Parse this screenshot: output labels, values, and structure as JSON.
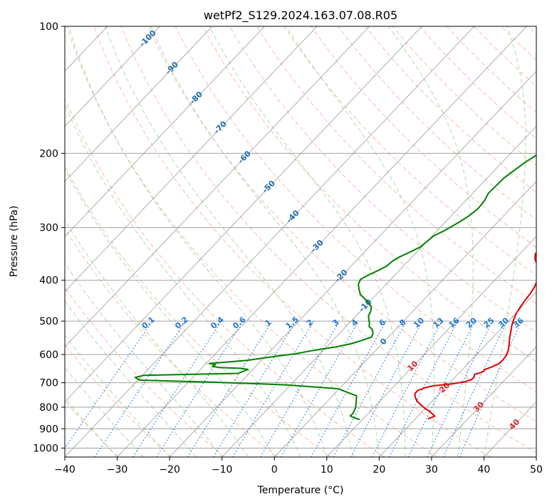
{
  "chart_data": {
    "type": "line",
    "subtype": "skew-t log-p diagram",
    "title": "wetPf2_S129.2024.163.07.08.R05",
    "xlabel": "Temperature (°C)",
    "ylabel": "Pressure (hPa)",
    "xlim": [
      -40,
      50
    ],
    "ylim": [
      1050,
      100
    ],
    "y_scale": "log",
    "x_ticks": [
      "−40",
      "−30",
      "−20",
      "−10",
      "0",
      "10",
      "20",
      "30",
      "40",
      "50"
    ],
    "y_ticks": [
      {
        "p": 100,
        "label": "100"
      },
      {
        "p": 200,
        "label": "200"
      },
      {
        "p": 300,
        "label": "300"
      },
      {
        "p": 400,
        "label": "400"
      },
      {
        "p": 500,
        "label": "500"
      },
      {
        "p": 600,
        "label": "600"
      },
      {
        "p": 700,
        "label": "700"
      },
      {
        "p": 800,
        "label": "800"
      },
      {
        "p": 900,
        "label": "900"
      },
      {
        "p": 1000,
        "label": "1000"
      }
    ],
    "grid": true,
    "colors": {
      "temperature": "#e00000",
      "dewpoint": "#008000",
      "isotherm": "#8c8c8c",
      "dry_adiabat": "#f7a48b",
      "moist_adiabat": "#8bc98b",
      "mixing_ratio": "#1f77d4",
      "dry_label": "#d62728",
      "isotherm_label": "#1f6fb0"
    },
    "series": [
      {
        "key": "temperature",
        "points": [
          [
            22.4,
            853
          ],
          [
            23.2,
            840
          ],
          [
            22.6,
            833
          ],
          [
            21.5,
            820
          ],
          [
            20.0,
            806
          ],
          [
            18.5,
            790
          ],
          [
            17.0,
            772
          ],
          [
            16.0,
            757
          ],
          [
            15.3,
            742
          ],
          [
            15.3,
            730
          ],
          [
            16.2,
            719
          ],
          [
            17.6,
            711
          ],
          [
            20.1,
            706
          ],
          [
            22.8,
            696
          ],
          [
            23.6,
            688
          ],
          [
            23.6,
            678
          ],
          [
            23.2,
            669
          ],
          [
            24.0,
            663
          ],
          [
            24.4,
            657
          ],
          [
            24.3,
            651
          ],
          [
            25.1,
            643
          ],
          [
            25.9,
            631
          ],
          [
            26.0,
            617
          ],
          [
            25.8,
            602
          ],
          [
            25.3,
            587
          ],
          [
            24.6,
            572
          ],
          [
            23.8,
            557
          ],
          [
            23.0,
            542
          ],
          [
            22.2,
            526
          ],
          [
            21.4,
            511
          ],
          [
            20.7,
            495
          ],
          [
            20.1,
            479
          ],
          [
            19.7,
            462
          ],
          [
            19.4,
            446
          ],
          [
            19.2,
            430
          ],
          [
            18.8,
            415
          ],
          [
            18.2,
            402
          ],
          [
            17.3,
            389
          ],
          [
            16.3,
            377
          ],
          [
            15.1,
            366
          ],
          [
            13.8,
            356
          ],
          [
            13.0,
            347
          ],
          [
            12.8,
            338
          ],
          [
            12.6,
            330
          ],
          [
            12.0,
            321
          ],
          [
            11.0,
            311
          ],
          [
            9.8,
            299
          ],
          [
            8.5,
            286
          ],
          [
            7.0,
            272
          ],
          [
            5.7,
            258
          ],
          [
            4.6,
            243
          ],
          [
            3.6,
            228
          ],
          [
            2.6,
            214
          ],
          [
            1.5,
            200
          ],
          [
            0.6,
            188
          ],
          [
            0.2,
            178
          ],
          [
            0.5,
            168
          ],
          [
            1.6,
            158
          ],
          [
            2.9,
            147
          ],
          [
            4.2,
            138
          ],
          [
            5.4,
            129
          ],
          [
            6.3,
            121
          ],
          [
            7.0,
            114
          ],
          [
            7.6,
            108
          ],
          [
            7.9,
            103
          ],
          [
            7.7,
            100
          ]
        ]
      },
      {
        "key": "dewpoint",
        "points": [
          [
            9.5,
            856
          ],
          [
            8.7,
            851
          ],
          [
            7.6,
            844
          ],
          [
            7.0,
            838
          ],
          [
            7.1,
            828
          ],
          [
            6.5,
            800
          ],
          [
            4.6,
            752
          ],
          [
            -0.3,
            723
          ],
          [
            -11.0,
            708
          ],
          [
            -26.4,
            697
          ],
          [
            -39.7,
            690
          ],
          [
            -41.0,
            680
          ],
          [
            -39.7,
            672
          ],
          [
            -22.1,
            665
          ],
          [
            -20.9,
            651
          ],
          [
            -22.5,
            647
          ],
          [
            -26.9,
            644
          ],
          [
            -28.3,
            640
          ],
          [
            -28.0,
            634
          ],
          [
            -29.4,
            630
          ],
          [
            -22.9,
            620
          ],
          [
            -19.9,
            611
          ],
          [
            -14.5,
            597
          ],
          [
            -12.6,
            589
          ],
          [
            -10.7,
            583
          ],
          [
            -8.1,
            575
          ],
          [
            -6.0,
            566
          ],
          [
            -4.5,
            556
          ],
          [
            -3.2,
            545
          ],
          [
            -3.7,
            533
          ],
          [
            -4.5,
            523
          ],
          [
            -5.6,
            515
          ],
          [
            -6.1,
            506
          ],
          [
            -6.9,
            496
          ],
          [
            -7.7,
            485
          ],
          [
            -8.0,
            475
          ],
          [
            -8.7,
            463
          ],
          [
            -10.2,
            451
          ],
          [
            -11.7,
            441
          ],
          [
            -13.1,
            432
          ],
          [
            -14.2,
            421
          ],
          [
            -15.3,
            409
          ],
          [
            -15.8,
            398
          ],
          [
            -15.0,
            388
          ],
          [
            -14.0,
            379
          ],
          [
            -13.2,
            370
          ],
          [
            -13.0,
            360
          ],
          [
            -12.4,
            352
          ],
          [
            -11.3,
            343
          ],
          [
            -10.3,
            334
          ],
          [
            -10.0,
            324
          ],
          [
            -9.7,
            314
          ],
          [
            -8.6,
            305
          ],
          [
            -7.6,
            294
          ],
          [
            -6.7,
            283
          ],
          [
            -6.2,
            271
          ],
          [
            -6.4,
            259
          ],
          [
            -7.0,
            249
          ],
          [
            -6.9,
            239
          ],
          [
            -6.8,
            229
          ],
          [
            -6.2,
            219
          ],
          [
            -5.5,
            209
          ],
          [
            -4.3,
            198
          ],
          [
            -2.7,
            189
          ],
          [
            -1.0,
            180
          ],
          [
            0.2,
            171
          ],
          [
            0.1,
            162
          ],
          [
            -1.9,
            153
          ],
          [
            -4.3,
            143
          ],
          [
            -6.3,
            133
          ],
          [
            -7.0,
            124
          ],
          [
            -6.7,
            116
          ],
          [
            -5.3,
            109
          ],
          [
            -3.3,
            103
          ],
          [
            -1.8,
            100
          ]
        ]
      }
    ],
    "isotherm_labels": [
      "-100",
      "-90",
      "-80",
      "-70",
      "-60",
      "-50",
      "-40",
      "-30",
      "-20",
      "-10",
      "0",
      "10",
      "20",
      "30",
      "40"
    ],
    "mixing_ratio_labels": [
      "0.1",
      "0.2",
      "0.4",
      "0.6",
      "1",
      "1.5",
      "2",
      "3",
      "4",
      "6",
      "8",
      "10",
      "13",
      "16",
      "20",
      "25",
      "30",
      "36"
    ]
  }
}
